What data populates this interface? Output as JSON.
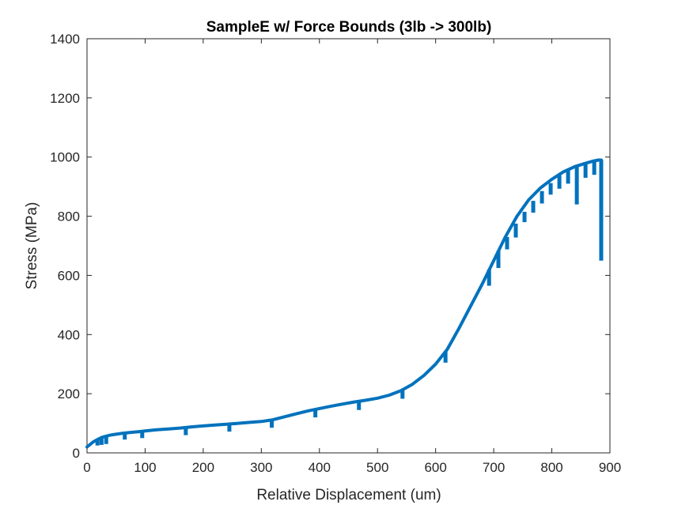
{
  "chart_data": {
    "type": "line",
    "title": "SampleE w/ Force Bounds (3lb -> 300lb)",
    "xlabel": "Relative Displacement (um)",
    "ylabel": "Stress (MPa)",
    "xlim": [
      0,
      900
    ],
    "ylim": [
      0,
      1400
    ],
    "xticks": [
      0,
      100,
      200,
      300,
      400,
      500,
      600,
      700,
      800,
      900
    ],
    "yticks": [
      0,
      200,
      400,
      600,
      800,
      1000,
      1200,
      1400
    ],
    "grid": false,
    "legend": "none",
    "series_color": "#0072BD",
    "series": [
      {
        "x": [
          0,
          5,
          10,
          15,
          20,
          25,
          30,
          40,
          50,
          60,
          70,
          80,
          90,
          100,
          120,
          140,
          160,
          180,
          200,
          220,
          240,
          260,
          280,
          300,
          320,
          340,
          360,
          380,
          400,
          420,
          440,
          460,
          480,
          500,
          520,
          540,
          560,
          580,
          600,
          620,
          640,
          660,
          680,
          700,
          720,
          740,
          760,
          780,
          800,
          820,
          840,
          860,
          870,
          880,
          885
        ],
        "y": [
          20,
          28,
          36,
          42,
          47,
          52,
          55,
          60,
          63,
          66,
          68,
          70,
          72,
          74,
          78,
          81,
          84,
          88,
          91,
          94,
          97,
          100,
          103,
          106,
          112,
          122,
          132,
          142,
          150,
          158,
          165,
          172,
          178,
          185,
          195,
          210,
          232,
          262,
          300,
          350,
          420,
          495,
          570,
          650,
          730,
          800,
          855,
          895,
          925,
          950,
          968,
          980,
          986,
          990,
          990
        ]
      }
    ],
    "unload_drops": [
      {
        "x": 18,
        "top": 45,
        "bottom": 25
      },
      {
        "x": 25,
        "top": 50,
        "bottom": 27
      },
      {
        "x": 33,
        "top": 55,
        "bottom": 30
      },
      {
        "x": 65,
        "top": 66,
        "bottom": 45
      },
      {
        "x": 95,
        "top": 73,
        "bottom": 50
      },
      {
        "x": 170,
        "top": 86,
        "bottom": 60
      },
      {
        "x": 245,
        "top": 98,
        "bottom": 72
      },
      {
        "x": 318,
        "top": 111,
        "bottom": 85
      },
      {
        "x": 393,
        "top": 148,
        "bottom": 120
      },
      {
        "x": 468,
        "top": 175,
        "bottom": 145
      },
      {
        "x": 543,
        "top": 212,
        "bottom": 183
      },
      {
        "x": 617,
        "top": 343,
        "bottom": 305
      },
      {
        "x": 692,
        "top": 620,
        "bottom": 565
      },
      {
        "x": 708,
        "top": 683,
        "bottom": 625
      },
      {
        "x": 723,
        "top": 730,
        "bottom": 688
      },
      {
        "x": 738,
        "top": 775,
        "bottom": 728
      },
      {
        "x": 753,
        "top": 815,
        "bottom": 780
      },
      {
        "x": 768,
        "top": 852,
        "bottom": 812
      },
      {
        "x": 783,
        "top": 885,
        "bottom": 843
      },
      {
        "x": 798,
        "top": 912,
        "bottom": 873
      },
      {
        "x": 813,
        "top": 938,
        "bottom": 893
      },
      {
        "x": 828,
        "top": 958,
        "bottom": 910
      },
      {
        "x": 843,
        "top": 972,
        "bottom": 840
      },
      {
        "x": 858,
        "top": 983,
        "bottom": 930
      },
      {
        "x": 873,
        "top": 990,
        "bottom": 940
      },
      {
        "x": 885,
        "top": 990,
        "bottom": 650
      }
    ]
  }
}
